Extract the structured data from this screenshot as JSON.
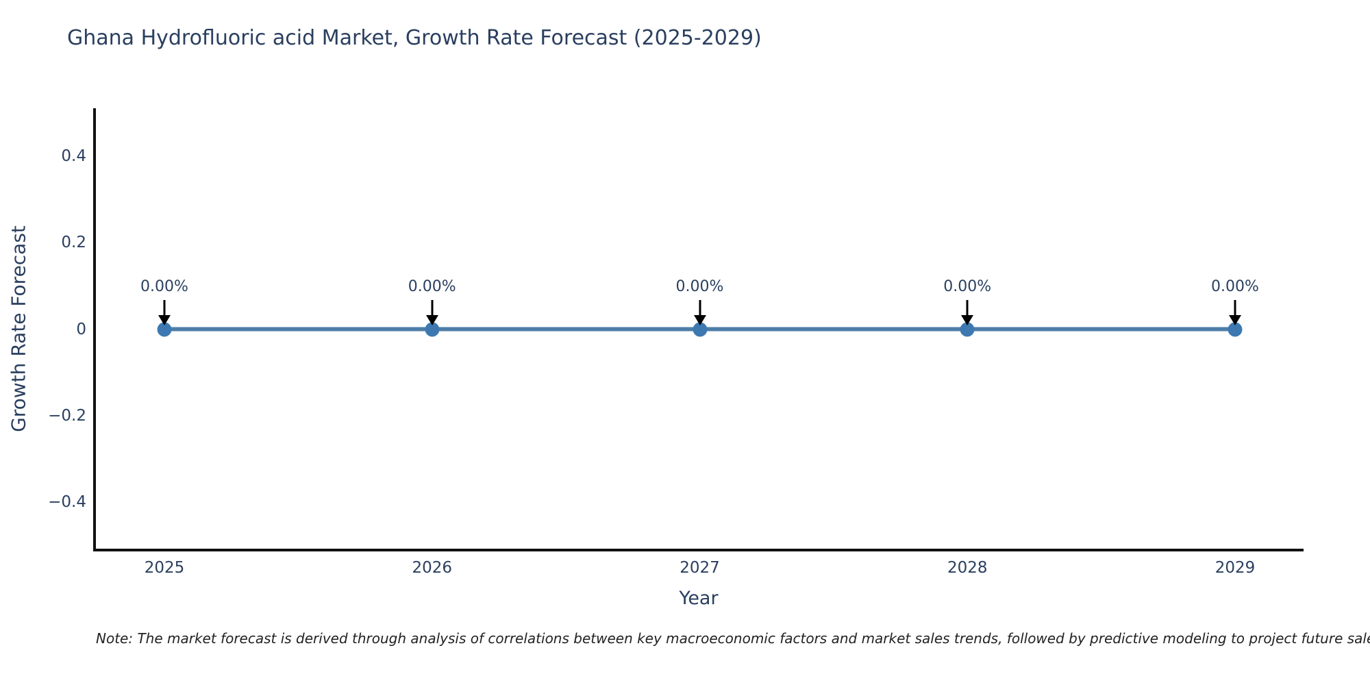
{
  "title": "Ghana Hydrofluoric acid Market, Growth Rate Forecast (2025-2029)",
  "chart_data": {
    "type": "line",
    "title": "Ghana Hydrofluoric acid Market, Growth Rate Forecast (2025-2029)",
    "xlabel": "Year",
    "ylabel": "Growth Rate Forecast",
    "categories": [
      "2025",
      "2026",
      "2027",
      "2028",
      "2029"
    ],
    "series": [
      {
        "name": "Growth Rate Forecast",
        "values": [
          0,
          0,
          0,
          0,
          0
        ]
      }
    ],
    "point_labels": [
      "0.00%",
      "0.00%",
      "0.00%",
      "0.00%",
      "0.00%"
    ],
    "y_ticks": [
      {
        "value": 0.4,
        "label": "0.4"
      },
      {
        "value": 0.2,
        "label": "0.2"
      },
      {
        "value": 0,
        "label": "0"
      },
      {
        "value": -0.2,
        "label": "−0.2"
      },
      {
        "value": -0.4,
        "label": "−0.4"
      }
    ],
    "ylim": [
      -0.51,
      0.51
    ],
    "grid": false,
    "legend": "none",
    "annotation_arrows": true,
    "colors": {
      "line": "#4d7ea8",
      "marker": "#3d79b0",
      "axis": "#111111",
      "text": "#2a3f5f",
      "arrow": "#000000"
    }
  },
  "note": {
    "text": "Note: The market forecast is derived through analysis of correlations between key macroeconomic factors and market sales trends, followed by predictive modeling to project future sales."
  }
}
